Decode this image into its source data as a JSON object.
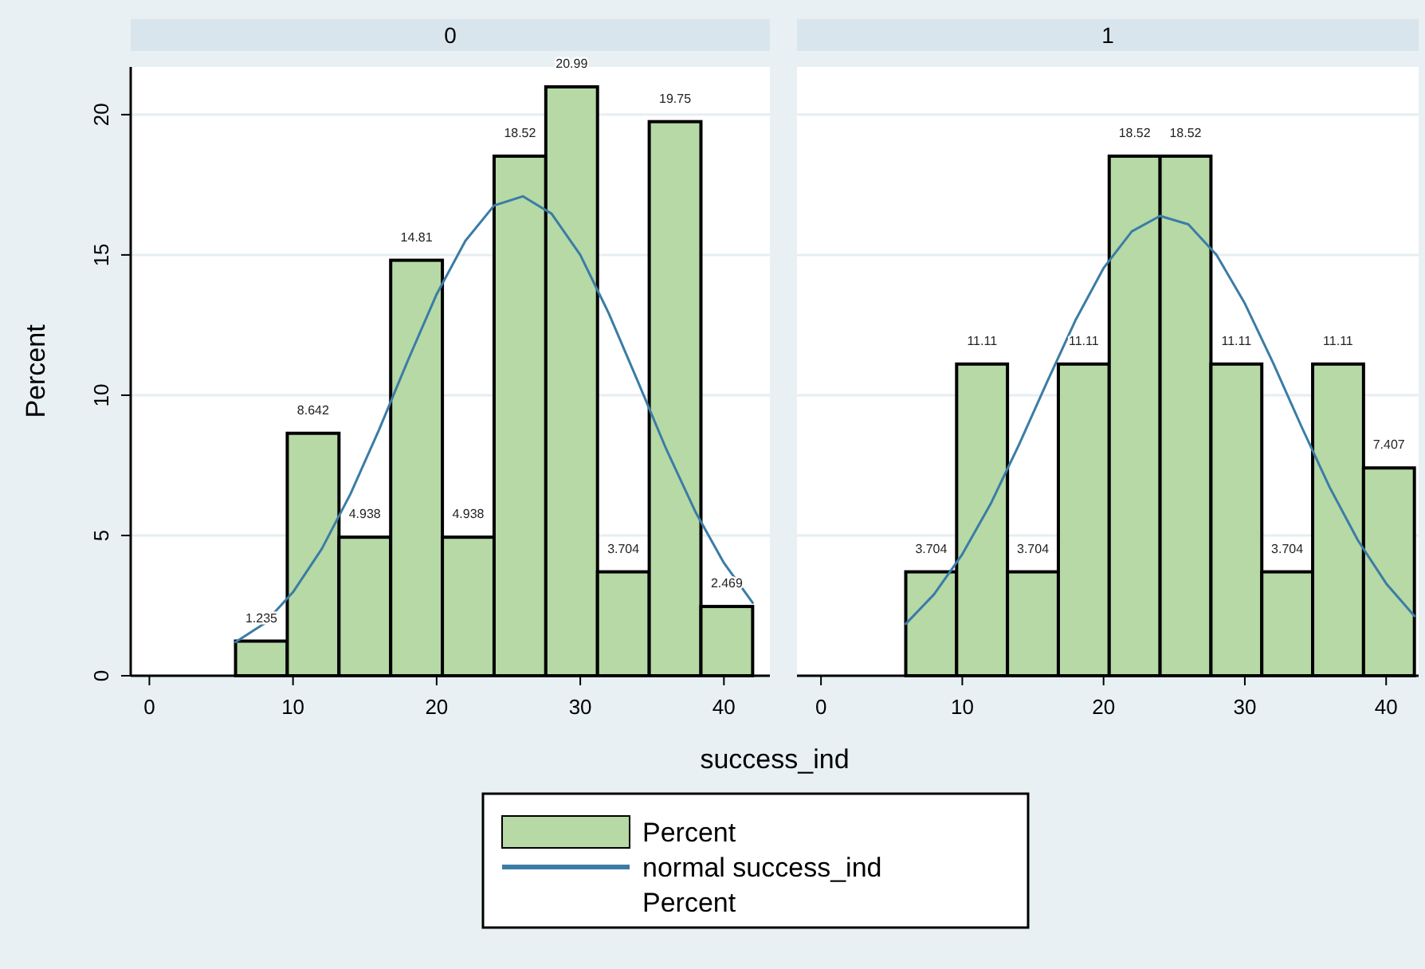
{
  "chart_data": [
    {
      "type": "histogram",
      "title": "0",
      "xlabel": "success_ind",
      "ylabel": "Percent",
      "bins": [
        6,
        9.6,
        13.2,
        16.8,
        20.4,
        24,
        27.6,
        31.2,
        34.8,
        38.4,
        42
      ],
      "xlim": [
        -1.3,
        43.2
      ],
      "xticks": [
        0,
        10,
        20,
        30,
        40
      ],
      "ylim": [
        0,
        21.7
      ],
      "yticks": [
        0,
        5,
        10,
        15,
        20
      ],
      "grid": "y",
      "legend": "bottom",
      "series": [
        {
          "name": "Percent",
          "color": "#b6d9a5",
          "values": [
            1.235,
            8.642,
            4.938,
            14.81,
            4.938,
            18.52,
            20.99,
            3.704,
            19.75,
            2.469
          ],
          "value_labels": [
            "1.235",
            "8.642",
            "4.938",
            "14.81",
            "4.938",
            "18.52",
            "20.99",
            "3.704",
            "19.75",
            "2.469"
          ]
        },
        {
          "type": "line",
          "name": "normal success_ind Percent",
          "color": "#3b7ca6",
          "x": [
            6,
            8,
            10,
            12,
            14,
            16,
            18,
            20,
            22,
            24,
            26,
            28,
            30,
            32,
            34,
            36,
            38,
            40,
            42
          ],
          "values": [
            1.2,
            1.86,
            2.98,
            4.52,
            6.48,
            8.78,
            11.24,
            13.6,
            15.5,
            16.76,
            17.09,
            16.47,
            15.0,
            12.9,
            10.5,
            8.06,
            5.86,
            4.02,
            2.6
          ]
        }
      ]
    },
    {
      "type": "histogram",
      "title": "1",
      "bins": [
        6,
        9.6,
        13.2,
        16.8,
        20.4,
        24,
        27.6,
        31.2,
        34.8,
        38.4,
        42
      ],
      "xlim": [
        -1.7,
        42.3
      ],
      "xticks": [
        0,
        10,
        20,
        30,
        40
      ],
      "ylim": [
        0,
        21.7
      ],
      "yticks": [
        0,
        5,
        10,
        15,
        20
      ],
      "grid": "y",
      "tick_labels": "x",
      "series": [
        {
          "color": "#b6d9a5",
          "values": [
            3.704,
            11.11,
            3.704,
            11.11,
            18.52,
            18.52,
            11.11,
            3.704,
            11.11,
            7.407
          ],
          "value_labels": [
            "3.704",
            "11.11",
            "3.704",
            "11.11",
            "18.52",
            "18.52",
            "11.11",
            "3.704",
            "11.11",
            "7.407"
          ]
        },
        {
          "type": "line",
          "color": "#3b7ca6",
          "x": [
            6,
            8,
            10,
            12,
            14,
            16,
            18,
            20,
            22,
            24,
            26,
            28,
            30,
            32,
            34,
            36,
            38,
            40,
            42
          ],
          "values": [
            1.85,
            2.9,
            4.33,
            6.12,
            8.22,
            10.47,
            12.66,
            14.53,
            15.84,
            16.39,
            16.09,
            15.0,
            13.27,
            11.15,
            8.89,
            6.72,
            4.83,
            3.29,
            2.13
          ]
        }
      ]
    }
  ]
}
